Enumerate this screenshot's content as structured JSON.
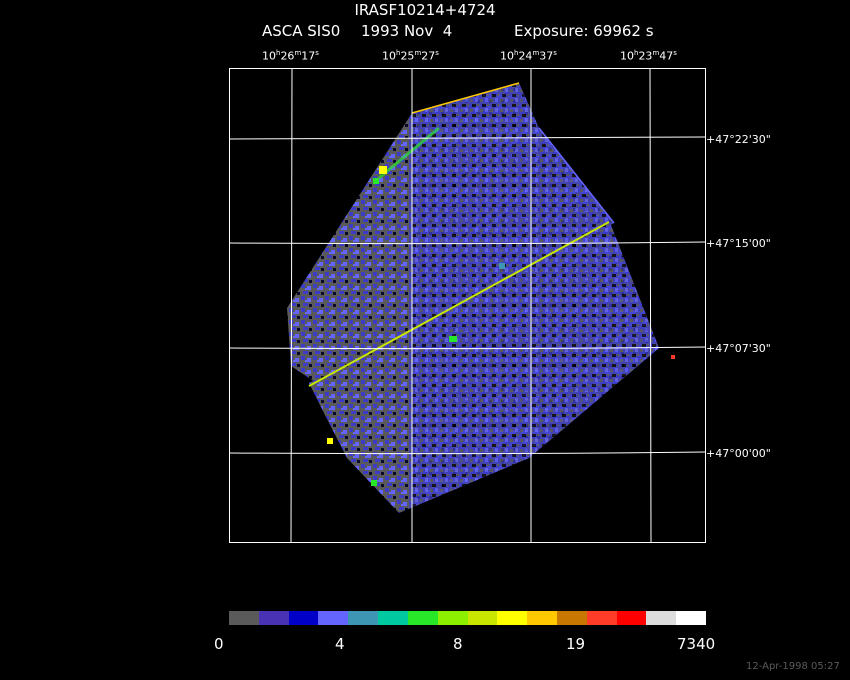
{
  "header": {
    "target": "IRASF10214+4724",
    "instrument": "ASCA SIS0",
    "date": "1993 Nov  4",
    "exposure": "Exposure: 69962 s"
  },
  "ra_ticks": [
    {
      "h": "10",
      "h_unit": "h",
      "m": "26",
      "m_unit": "m",
      "s": "17",
      "s_unit": "s"
    },
    {
      "h": "10",
      "h_unit": "h",
      "m": "25",
      "m_unit": "m",
      "s": "27",
      "s_unit": "s"
    },
    {
      "h": "10",
      "h_unit": "h",
      "m": "24",
      "m_unit": "m",
      "s": "37",
      "s_unit": "s"
    },
    {
      "h": "10",
      "h_unit": "h",
      "m": "23",
      "m_unit": "m",
      "s": "47",
      "s_unit": "s"
    }
  ],
  "dec_ticks": [
    "+47°22'30\"",
    "+47°15'00\"",
    "+47°07'30\"",
    "+47°00'00\""
  ],
  "colorbar": {
    "labels": [
      "0",
      "4",
      "8",
      "19",
      "7340"
    ],
    "colors": [
      "#5a5a5a",
      "#4a32b4",
      "#0000c8",
      "#6464ff",
      "#3c96b4",
      "#00c8a0",
      "#28e628",
      "#8cf000",
      "#c8e600",
      "#ffff00",
      "#ffc800",
      "#c87800",
      "#ff3c28",
      "#ff0000",
      "#dcdcdc",
      "#ffffff"
    ]
  },
  "footer": {
    "timestamp": "12-Apr-1998 05:27"
  },
  "image_colors": {
    "background": "#000000",
    "grid": "#ffffff",
    "low": "#5a5a5a",
    "mid": "#3c3cc8",
    "high": "#6464ff",
    "hot": "#ffff00"
  }
}
